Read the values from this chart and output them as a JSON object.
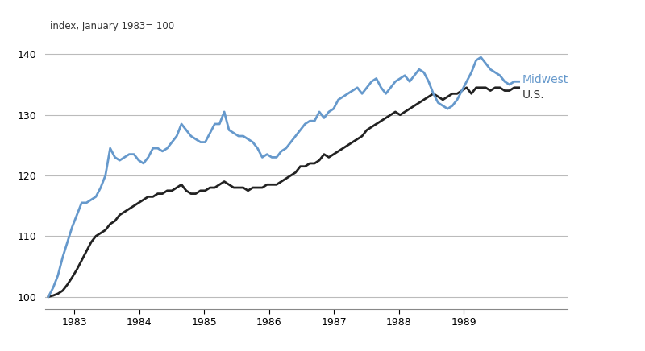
{
  "title_annotation": "index, January 1983= 100",
  "ylim": [
    98,
    142
  ],
  "yticks": [
    100,
    110,
    120,
    130,
    140
  ],
  "midwest_color": "#6699cc",
  "us_color": "#222222",
  "line_width": 2.0,
  "background_color": "#ffffff",
  "midwest_label": "Midwest",
  "us_label": "U.S.",
  "midwest_data": [
    100.0,
    101.5,
    103.5,
    106.5,
    109.0,
    111.5,
    113.5,
    115.5,
    115.5,
    116.0,
    116.5,
    118.0,
    120.0,
    124.5,
    123.0,
    122.5,
    123.0,
    123.5,
    123.5,
    122.5,
    122.0,
    123.0,
    124.5,
    124.5,
    124.0,
    124.5,
    125.5,
    126.5,
    128.5,
    127.5,
    126.5,
    126.0,
    125.5,
    125.5,
    127.0,
    128.5,
    128.5,
    130.5,
    127.5,
    127.0,
    126.5,
    126.5,
    126.0,
    125.5,
    124.5,
    123.0,
    123.5,
    123.0,
    123.0,
    124.0,
    124.5,
    125.5,
    126.5,
    127.5,
    128.5,
    129.0,
    129.0,
    130.5,
    129.5,
    130.5,
    131.0,
    132.5,
    133.0,
    133.5,
    134.0,
    134.5,
    133.5,
    134.5,
    135.5,
    136.0,
    134.5,
    133.5,
    134.5,
    135.5,
    136.0,
    136.5,
    135.5,
    136.5,
    137.5,
    137.0,
    135.5,
    133.5,
    132.0,
    131.5,
    131.0,
    131.5,
    132.5,
    134.0,
    135.5,
    137.0,
    139.0,
    139.5,
    138.5,
    137.5,
    137.0,
    136.5,
    135.5,
    135.0,
    135.5,
    135.5
  ],
  "us_data": [
    100.0,
    100.2,
    100.5,
    101.0,
    102.0,
    103.2,
    104.5,
    106.0,
    107.5,
    109.0,
    110.0,
    110.5,
    111.0,
    112.0,
    112.5,
    113.5,
    114.0,
    114.5,
    115.0,
    115.5,
    116.0,
    116.5,
    116.5,
    117.0,
    117.0,
    117.5,
    117.5,
    118.0,
    118.5,
    117.5,
    117.0,
    117.0,
    117.5,
    117.5,
    118.0,
    118.0,
    118.5,
    119.0,
    118.5,
    118.0,
    118.0,
    118.0,
    117.5,
    118.0,
    118.0,
    118.0,
    118.5,
    118.5,
    118.5,
    119.0,
    119.5,
    120.0,
    120.5,
    121.5,
    121.5,
    122.0,
    122.0,
    122.5,
    123.5,
    123.0,
    123.5,
    124.0,
    124.5,
    125.0,
    125.5,
    126.0,
    126.5,
    127.5,
    128.0,
    128.5,
    129.0,
    129.5,
    130.0,
    130.5,
    130.0,
    130.5,
    131.0,
    131.5,
    132.0,
    132.5,
    133.0,
    133.5,
    133.0,
    132.5,
    133.0,
    133.5,
    133.5,
    134.0,
    134.5,
    133.5,
    134.5,
    134.5,
    134.5,
    134.0,
    134.5,
    134.5,
    134.0,
    134.0,
    134.5,
    134.5
  ],
  "x_start_year": 1982.6,
  "x_end_year": 1989.85,
  "xtick_years": [
    1983,
    1984,
    1985,
    1986,
    1987,
    1988,
    1989
  ]
}
